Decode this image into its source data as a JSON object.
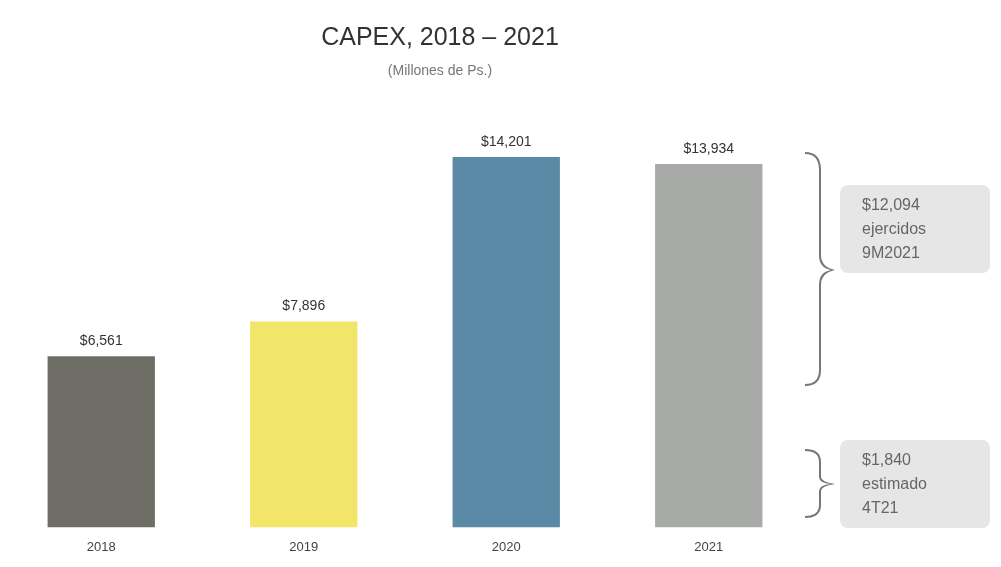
{
  "chart_data": {
    "type": "bar",
    "title": "CAPEX, 2018 – 2021",
    "subtitle": "(Millones de Ps.)",
    "categories": [
      "2018",
      "2019",
      "2020",
      "2021"
    ],
    "values": [
      6561,
      7896,
      14201,
      13934
    ],
    "colors": [
      "#6f6e66",
      "#f2e56a",
      "#5a8aa6",
      "#a7aaa6"
    ],
    "value_labels": [
      "$6,561",
      "$7,896",
      "$14,201",
      "$13,934"
    ],
    "annotations": [
      "$12,094\nejercidos\n9M2021",
      "$1,840\nestimado\n4T21"
    ],
    "grid": false,
    "legend": false
  }
}
